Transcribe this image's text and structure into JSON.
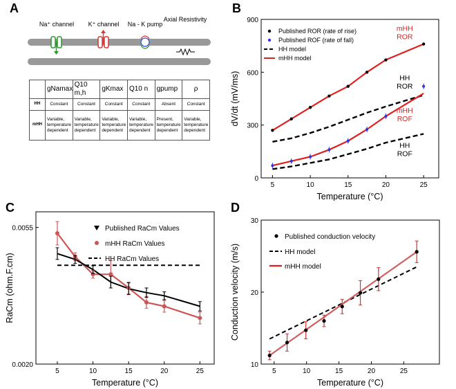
{
  "panel_letters": [
    "A",
    "B",
    "C",
    "D"
  ],
  "panel_a": {
    "labels": [
      "Na⁺ channel",
      "K⁺ channel",
      "Na - K pump",
      "Axial Resistivity"
    ],
    "table": {
      "headers": [
        "",
        "gNamax",
        "Q10 m,h",
        "gKmax",
        "Q10 n",
        "gpump",
        "ρ"
      ],
      "rows": [
        [
          "HH",
          "Constant",
          "Constant",
          "Constant",
          "Constant",
          "Absent",
          "Constant"
        ],
        [
          "mHH",
          "Variable, temperature dependent",
          "Variable, temperature dependent",
          "Variable, temperature dependent",
          "Variable, temperature dependent",
          "Present, temperature dependent",
          "Variable, temperature dependent"
        ]
      ]
    }
  },
  "chart_data": [
    {
      "panel": "B",
      "type": "line",
      "xlabel": "Temperature (°C)",
      "ylabel": "dV/dt (mV/ms)",
      "xlim": [
        3.5,
        27
      ],
      "ylim": [
        0,
        900
      ],
      "xticks": [
        5,
        10,
        15,
        20,
        25
      ],
      "yticks": [
        0,
        300,
        600,
        900
      ],
      "legend": [
        "Published ROR (rate of rise)",
        "Published ROF (rate of fall)",
        "HH model",
        "mHH model"
      ],
      "annotations": [
        "mHH ROR",
        "HH ROR",
        "mHH ROF",
        "HH ROF"
      ],
      "series": [
        {
          "name": "Published ROR (rate of rise)",
          "kind": "points",
          "color": "#000000",
          "x": [
            5,
            7.5,
            10,
            12.5,
            15,
            17.5,
            20,
            25
          ],
          "y": [
            270,
            335,
            400,
            465,
            520,
            600,
            670,
            760
          ]
        },
        {
          "name": "Published ROF (rate of fall)",
          "kind": "points",
          "color": "#3333dd",
          "x": [
            5,
            7.5,
            10,
            12.5,
            15,
            17.5,
            20,
            25
          ],
          "y": [
            70,
            95,
            120,
            160,
            210,
            275,
            350,
            520
          ]
        },
        {
          "name": "mHH ROR",
          "kind": "line",
          "color": "#e02020",
          "x": [
            5,
            7.5,
            10,
            12.5,
            15,
            17.5,
            20,
            25
          ],
          "y": [
            270,
            335,
            400,
            465,
            520,
            600,
            670,
            760
          ]
        },
        {
          "name": "mHH ROF",
          "kind": "line",
          "color": "#e02020",
          "x": [
            5,
            7.5,
            10,
            12.5,
            15,
            17.5,
            20,
            25
          ],
          "y": [
            70,
            95,
            120,
            160,
            210,
            275,
            350,
            480
          ]
        },
        {
          "name": "HH ROR",
          "kind": "dashed",
          "color": "#000000",
          "x": [
            5,
            7.5,
            10,
            12.5,
            15,
            17.5,
            20,
            25
          ],
          "y": [
            205,
            225,
            255,
            290,
            330,
            370,
            405,
            470
          ]
        },
        {
          "name": "HH ROF",
          "kind": "dashed",
          "color": "#000000",
          "x": [
            5,
            7.5,
            10,
            12.5,
            15,
            17.5,
            20,
            25
          ],
          "y": [
            50,
            65,
            85,
            105,
            135,
            165,
            200,
            250
          ]
        }
      ]
    },
    {
      "panel": "C",
      "type": "line",
      "xlabel": "Temperature (°C)",
      "ylabel": "RaCm (ohm.F.cm)",
      "xlim": [
        2,
        27
      ],
      "ylim": [
        0.002,
        0.0059
      ],
      "xticks": [
        5,
        10,
        15,
        20,
        25
      ],
      "yticks": [
        0.002,
        0.0055
      ],
      "ytick_labels": [
        "0.0020",
        "0.0055"
      ],
      "legend": [
        "Published RaCm Values",
        "mHH RaCm Values",
        "HH RaCm Values"
      ],
      "series": [
        {
          "name": "Published RaCm Values",
          "kind": "line-errbar",
          "color": "#000000",
          "x": [
            5,
            7.5,
            10,
            12.5,
            15,
            17.5,
            20,
            25
          ],
          "y": [
            0.00483,
            0.00468,
            0.00442,
            0.0041,
            0.00393,
            0.00383,
            0.00375,
            0.00348
          ],
          "err": [
            0.00015,
            0.0001,
            0.0001,
            0.00015,
            0.00015,
            0.00012,
            0.0001,
            0.00012
          ]
        },
        {
          "name": "mHH RaCm Values",
          "kind": "line-errbar",
          "color": "#cc5555",
          "x": [
            5,
            7.5,
            10,
            12.5,
            15,
            17.5,
            20,
            25
          ],
          "y": [
            0.00535,
            0.00475,
            0.0043,
            0.0043,
            0.00395,
            0.00358,
            0.00348,
            0.00318
          ],
          "err": [
            0.0003,
            0.0001,
            0.0001,
            0.00035,
            0.00015,
            0.00015,
            0.00015,
            0.00015
          ]
        },
        {
          "name": "HH RaCm Values",
          "kind": "dashed",
          "color": "#000000",
          "x": [
            5,
            25
          ],
          "y": [
            0.00453,
            0.00453
          ]
        }
      ]
    },
    {
      "panel": "D",
      "type": "line",
      "xlabel": "Temperature (°C)",
      "ylabel": "Conduction velocity (m/s)",
      "xlim": [
        3,
        30.5
      ],
      "ylim": [
        10,
        30
      ],
      "xticks": [
        5,
        10,
        15,
        20,
        25
      ],
      "yticks": [
        10,
        20,
        30
      ],
      "legend": [
        "Published conduction velocity",
        "HH model",
        "mHH model"
      ],
      "series": [
        {
          "name": "Published conduction velocity",
          "kind": "points-errbar",
          "color": "#000000",
          "errcolor": "#cc3333",
          "x": [
            4.3,
            7.0,
            9.9,
            12.7,
            15.5,
            18.3,
            21.1,
            27.0
          ],
          "y": [
            11.2,
            13.0,
            14.7,
            16.0,
            18.0,
            19.9,
            21.8,
            25.6
          ],
          "err": [
            0.6,
            1.2,
            1.2,
            0.8,
            1.0,
            1.7,
            1.6,
            1.5
          ]
        },
        {
          "name": "HH model",
          "kind": "dashed",
          "color": "#000000",
          "x": [
            4.3,
            27.0
          ],
          "y": [
            13.5,
            23.5
          ]
        },
        {
          "name": "mHH model",
          "kind": "line",
          "color": "#d06060",
          "x": [
            4.3,
            27.0
          ],
          "y": [
            11.2,
            25.6
          ]
        }
      ]
    }
  ]
}
